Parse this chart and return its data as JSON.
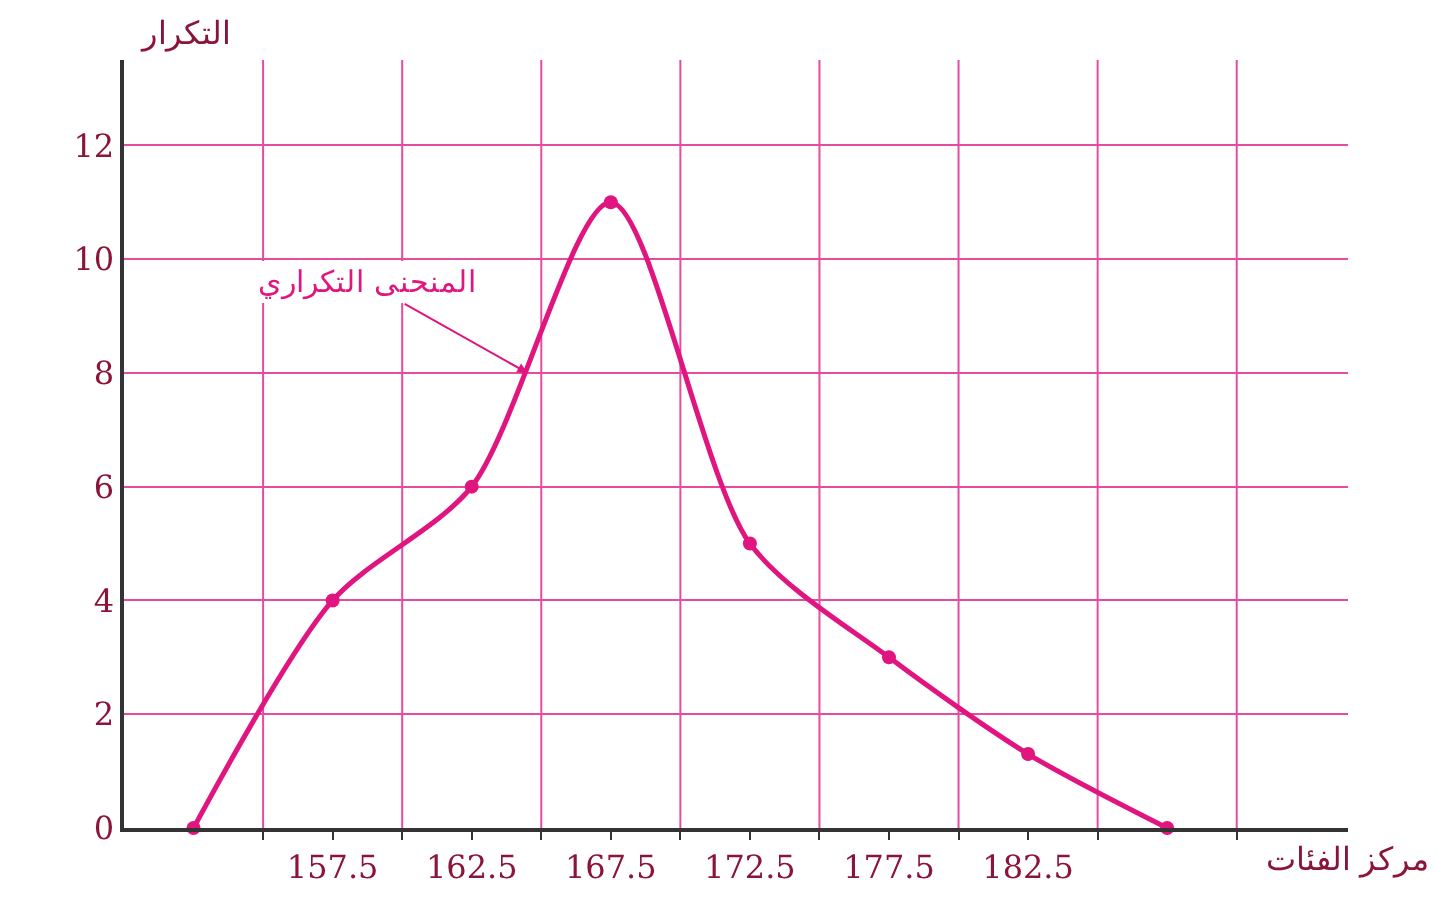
{
  "chart_data": {
    "type": "line",
    "xlabel": "مركز الفئات",
    "ylabel": "التكرار",
    "x": [
      152.5,
      157.5,
      162.5,
      167.5,
      172.5,
      177.5,
      182.5,
      187.5
    ],
    "series": [
      {
        "color": "#e0157f",
        "values": [
          0,
          4,
          6,
          11,
          5,
          3,
          1.3,
          0
        ]
      }
    ],
    "xlim": [
      150,
      194
    ],
    "ylim": [
      0,
      13.5
    ],
    "xticks": [
      {
        "value": 155,
        "label": null
      },
      {
        "value": 157.5,
        "label": "157.5"
      },
      {
        "value": 160,
        "label": null
      },
      {
        "value": 162.5,
        "label": "162.5"
      },
      {
        "value": 165,
        "label": null
      },
      {
        "value": 167.5,
        "label": "167.5"
      },
      {
        "value": 170,
        "label": null
      },
      {
        "value": 172.5,
        "label": "172.5"
      },
      {
        "value": 175,
        "label": null
      },
      {
        "value": 177.5,
        "label": "177.5"
      },
      {
        "value": 180,
        "label": null
      },
      {
        "value": 182.5,
        "label": "182.5"
      },
      {
        "value": 185,
        "label": null
      },
      {
        "value": 190,
        "label": null
      }
    ],
    "yticks": [
      0,
      2,
      4,
      6,
      8,
      10,
      12
    ],
    "grid": true,
    "marker": "circle",
    "line_style": "solid",
    "annotations": [
      {
        "text": "المنحنى التكراري",
        "x": 164.5,
        "y": 8
      }
    ]
  }
}
